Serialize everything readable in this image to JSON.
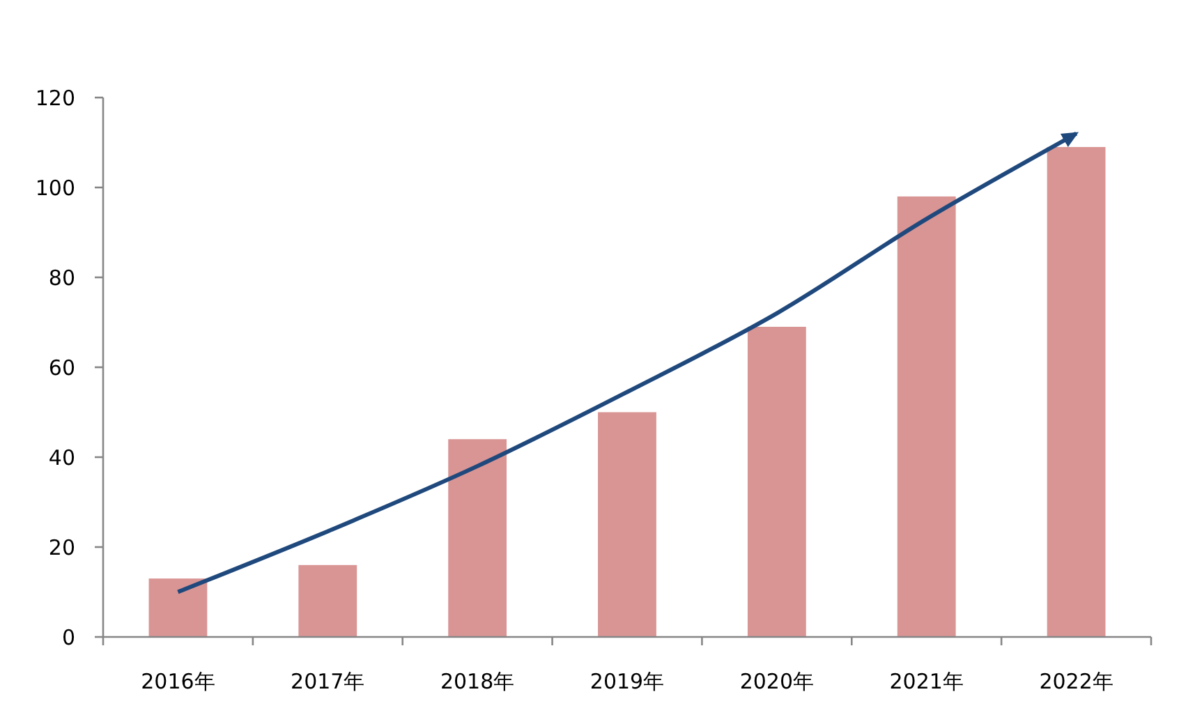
{
  "chart_data": {
    "type": "bar",
    "categories": [
      "2016年",
      "2017年",
      "2018年",
      "2019年",
      "2020年",
      "2021年",
      "2022年"
    ],
    "series": [
      {
        "color": "#d99594",
        "values": [
          13,
          16,
          44,
          50,
          69,
          98,
          109
        ]
      },
      {
        "type": "line",
        "color": "#1f497d",
        "values": [
          10,
          23.5,
          38,
          54.5,
          72,
          93,
          112
        ]
      }
    ],
    "ylim": [
      0,
      120
    ],
    "yticks": [
      0,
      20,
      40,
      60,
      80,
      100,
      120
    ]
  }
}
